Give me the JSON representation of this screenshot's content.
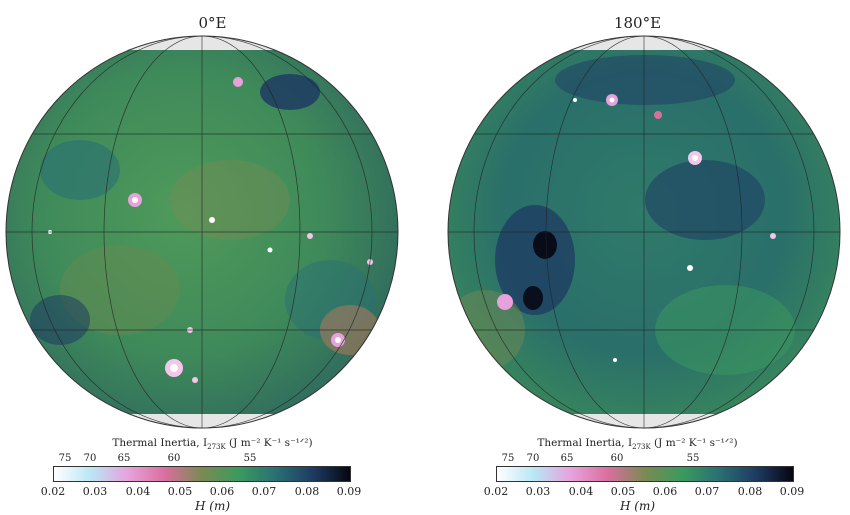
{
  "panels": [
    {
      "id": "left",
      "title": "0°E",
      "colorbar_top_label": "Thermal Inertia, I",
      "colorbar_top_sub": "273K",
      "colorbar_top_units": " (J m⁻² K⁻¹ s⁻¹ᐟ²)",
      "colorbar_bottom_label": "H (m)",
      "inertia_ticks": [
        "75",
        "70",
        "65",
        "60",
        "55"
      ],
      "h_ticks": [
        "0.02",
        "0.03",
        "0.04",
        "0.05",
        "0.06",
        "0.07",
        "0.08",
        "0.09"
      ]
    },
    {
      "id": "right",
      "title": "180°E",
      "colorbar_top_label": "Thermal Inertia, I",
      "colorbar_top_sub": "273K",
      "colorbar_top_units": " (J m⁻² K⁻¹ s⁻¹ᐟ²)",
      "colorbar_bottom_label": "H (m)",
      "inertia_ticks": [
        "75",
        "70",
        "65",
        "60",
        "55"
      ],
      "h_ticks": [
        "0.02",
        "0.03",
        "0.04",
        "0.05",
        "0.06",
        "0.07",
        "0.08",
        "0.09"
      ]
    }
  ],
  "colormap": [
    "#ffffff",
    "#b9e6f5",
    "#e7a2dd",
    "#d96f9d",
    "#7a8a52",
    "#3b9a5e",
    "#2a6f73",
    "#1e3b63",
    "#060611"
  ]
}
